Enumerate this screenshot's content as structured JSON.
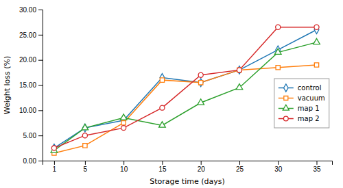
{
  "chart_data": {
    "type": "line",
    "x_label": "Storage time (days)",
    "y_label": "Weight loss (%)",
    "x": [
      1,
      5,
      10,
      15,
      20,
      25,
      30,
      35
    ],
    "series": [
      {
        "name": "control",
        "marker": "diamond",
        "values": [
          2.5,
          6.5,
          8.0,
          16.5,
          15.5,
          18.0,
          22.0,
          26.0
        ]
      },
      {
        "name": "vacuum",
        "marker": "square",
        "values": [
          1.5,
          3.0,
          7.5,
          16.0,
          15.5,
          18.0,
          18.5,
          19.0
        ]
      },
      {
        "name": "map 1",
        "marker": "triangle",
        "values": [
          2.0,
          6.5,
          8.5,
          7.0,
          11.5,
          14.5,
          21.5,
          23.5
        ]
      },
      {
        "name": "map 2",
        "marker": "circle",
        "values": [
          2.5,
          5.0,
          6.5,
          10.5,
          17.0,
          18.0,
          26.5,
          26.5
        ]
      }
    ],
    "xlim": [
      -0.5,
      37
    ],
    "ylim": [
      0.0,
      30.0
    ],
    "xticks": [
      1,
      5,
      10,
      15,
      20,
      25,
      30,
      35
    ],
    "yticks": [
      {
        "value": 0.0,
        "label": "0.00"
      },
      {
        "value": 5.0,
        "label": "5.00"
      },
      {
        "value": 10.0,
        "label": "10.00"
      },
      {
        "value": 15.0,
        "label": "15.00"
      },
      {
        "value": 20.0,
        "label": "20.00"
      },
      {
        "value": 25.0,
        "label": "25.00"
      },
      {
        "value": 30.0,
        "label": "30.00"
      }
    ],
    "grid": false,
    "legend": "right"
  }
}
